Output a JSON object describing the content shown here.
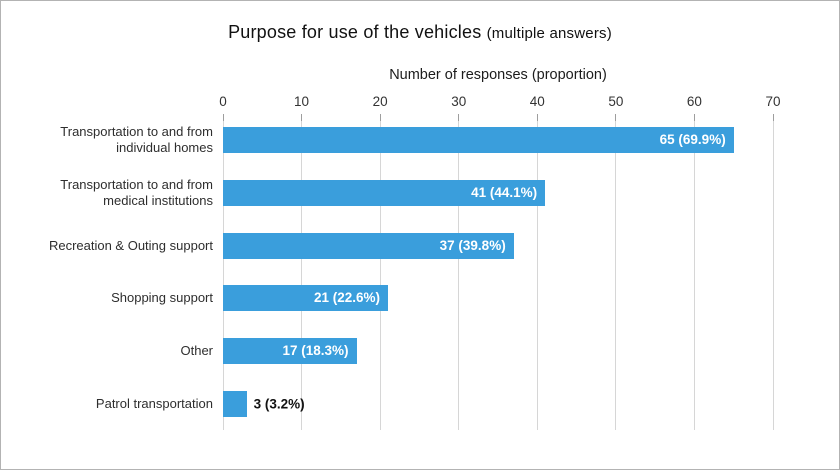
{
  "title": {
    "main": "Purpose for use of the vehicles",
    "sub": "(multiple answers)"
  },
  "axis": {
    "title": "Number of responses (proportion)"
  },
  "frame": {
    "background": "#ffffff",
    "border_color": "#b3b3b3"
  },
  "chart_data": {
    "type": "bar",
    "orientation": "horizontal",
    "title": "Purpose for use of the vehicles (multiple answers)",
    "xlabel": "Number of responses (proportion)",
    "xlim": [
      0,
      70
    ],
    "xticks": [
      0,
      10,
      20,
      30,
      40,
      50,
      60,
      70
    ],
    "grid": true,
    "gridline_color": "#d6d6d6",
    "tickmark_color": "#9e9e9e",
    "bar_color": "#3A9EDC",
    "categories": [
      "Transportation to and from individual homes",
      "Transportation to and from medical institutions",
      "Recreation & Outing support",
      "Shopping support",
      "Other",
      "Patrol transportation"
    ],
    "values": [
      65,
      41,
      37,
      21,
      17,
      3
    ],
    "proportions": [
      "69.9%",
      "44.1%",
      "39.8%",
      "22.6%",
      "18.3%",
      "3.2%"
    ],
    "rows": [
      {
        "label_lines": [
          "Transportation to and from",
          "individual homes"
        ],
        "value": 65,
        "value_label": "65 (69.9%)",
        "value_label_position": "inside"
      },
      {
        "label_lines": [
          "Transportation to and from",
          "medical institutions"
        ],
        "value": 41,
        "value_label": "41 (44.1%)",
        "value_label_position": "inside"
      },
      {
        "label_lines": [
          "Recreation & Outing support"
        ],
        "value": 37,
        "value_label": "37 (39.8%)",
        "value_label_position": "inside"
      },
      {
        "label_lines": [
          "Shopping support"
        ],
        "value": 21,
        "value_label": "21 (22.6%)",
        "value_label_position": "inside"
      },
      {
        "label_lines": [
          "Other"
        ],
        "value": 17,
        "value_label": "17 (18.3%)",
        "value_label_position": "inside"
      },
      {
        "label_lines": [
          "Patrol transportation"
        ],
        "value": 3,
        "value_label": "3 (3.2%)",
        "value_label_position": "outside"
      }
    ]
  }
}
